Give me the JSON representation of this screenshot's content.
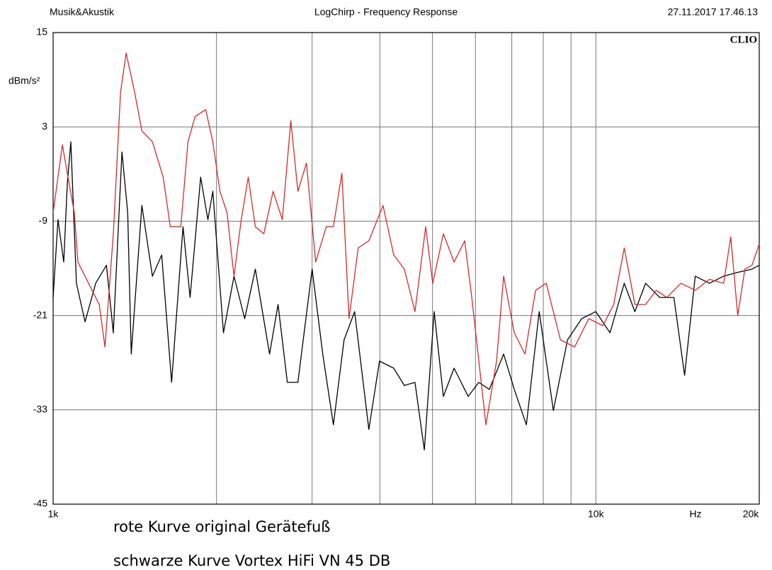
{
  "chart_data": {
    "type": "line",
    "header_left": "Musik&Akustik",
    "title": "LogChirp - Frequency Response",
    "header_right": "27.11.2017 17.46.13",
    "logo": "CLIO",
    "ylabel": "dBm/s²",
    "xlabel": "Hz",
    "xscale": "log",
    "xlim": [
      1000,
      20000
    ],
    "xticks": [
      {
        "value": 1000,
        "label": "1k"
      },
      {
        "value": 10000,
        "label": "10k"
      },
      {
        "value": 20000,
        "label": "20k"
      }
    ],
    "xminor": [
      2000,
      3000,
      4000,
      5000,
      6000,
      7000,
      8000,
      9000
    ],
    "ylim": [
      -45,
      15
    ],
    "yticks": [
      15,
      3,
      -9,
      -21,
      -33,
      -45
    ],
    "grid": true,
    "series": [
      {
        "name": "rote Kurve original Gerätefuß",
        "color": "#d42a2a",
        "x": [
          1000,
          1040,
          1062,
          1094,
          1111,
          1162,
          1216,
          1246,
          1291,
          1331,
          1363,
          1413,
          1457,
          1524,
          1595,
          1644,
          1719,
          1772,
          1826,
          1910,
          1969,
          2029,
          2091,
          2154,
          2221,
          2288,
          2358,
          2445,
          2543,
          2644,
          2741,
          2825,
          2929,
          3046,
          3186,
          3284,
          3404,
          3509,
          3649,
          3817,
          4054,
          4242,
          4438,
          4642,
          4857,
          5005,
          5236,
          5479,
          5732,
          5906,
          6273,
          6561,
          6763,
          7074,
          7401,
          7743,
          8101,
          8604,
          9138,
          9703,
          10306,
          10782,
          11280,
          11800,
          12346,
          12915,
          13511,
          14352,
          15241,
          16190,
          17195,
          17722,
          18256,
          18818,
          19398,
          20000
        ],
        "values": [
          -7.9,
          0.7,
          -2.9,
          -7.9,
          -14.2,
          -16.9,
          -19.6,
          -25,
          -10.6,
          7.4,
          12.4,
          7.4,
          2.5,
          1.1,
          -3.4,
          -9.7,
          -9.7,
          1.1,
          4.3,
          5.2,
          1.1,
          -5.2,
          -7.9,
          -16,
          -8.8,
          -3.4,
          -9.7,
          -10.6,
          -5.2,
          -8.8,
          3.8,
          -5.2,
          -1.6,
          -14.2,
          -9.7,
          -9.7,
          -2.9,
          -21.4,
          -12.4,
          -11.5,
          -7,
          -13.3,
          -15.1,
          -20.5,
          -9.7,
          -16.9,
          -10.6,
          -14.2,
          -11.5,
          -18.7,
          -34.9,
          -26.8,
          -16,
          -23.2,
          -25.9,
          -17.8,
          -16.9,
          -24.1,
          -25,
          -21.4,
          -22.3,
          -19.6,
          -12.4,
          -19.6,
          -19.6,
          -17.8,
          -18.7,
          -16.9,
          -17.8,
          -16.4,
          -16.9,
          -11,
          -21,
          -15.1,
          -14.6,
          -11.9
        ]
      },
      {
        "name": "schwarze Kurve Vortex HiFi VN 45 DB",
        "color": "#000000",
        "x": [
          1000,
          1021,
          1046,
          1062,
          1078,
          1104,
          1145,
          1198,
          1254,
          1291,
          1339,
          1372,
          1393,
          1457,
          1524,
          1585,
          1653,
          1735,
          1788,
          1870,
          1928,
          1969,
          2060,
          2154,
          2254,
          2358,
          2505,
          2597,
          2701,
          2825,
          3001,
          3139,
          3284,
          3436,
          3594,
          3817,
          3993,
          4242,
          4438,
          4642,
          4829,
          5035,
          5236,
          5479,
          5819,
          6086,
          6366,
          6763,
          7074,
          7446,
          7862,
          8350,
          8867,
          9417,
          10000,
          10619,
          11280,
          11800,
          12346,
          13112,
          13925,
          14571,
          15241,
          16190,
          17195,
          18256,
          19398,
          20000
        ],
        "values": [
          -18.7,
          -8.8,
          -14.2,
          -4.3,
          1.1,
          -16.9,
          -21.8,
          -16.9,
          -14.6,
          -23.2,
          -0.2,
          -7.9,
          -25.9,
          -7,
          -16,
          -13.3,
          -29.5,
          -9.7,
          -18.7,
          -3.4,
          -8.8,
          -5.2,
          -23.2,
          -16,
          -21.4,
          -15.1,
          -25.9,
          -19.6,
          -29.5,
          -29.5,
          -15.1,
          -25.9,
          -34.9,
          -24.1,
          -20.5,
          -35.5,
          -26.8,
          -27.7,
          -29.9,
          -29.5,
          -38.1,
          -20.5,
          -31.3,
          -27.7,
          -31.3,
          -29.5,
          -30.4,
          -25.9,
          -30.4,
          -34.9,
          -20.5,
          -33.1,
          -24.1,
          -21.4,
          -20.5,
          -23.2,
          -16.9,
          -20.5,
          -16.9,
          -18.7,
          -18.7,
          -28.6,
          -16,
          -16.9,
          -16,
          -15.5,
          -15.1,
          -14.6
        ]
      }
    ]
  }
}
